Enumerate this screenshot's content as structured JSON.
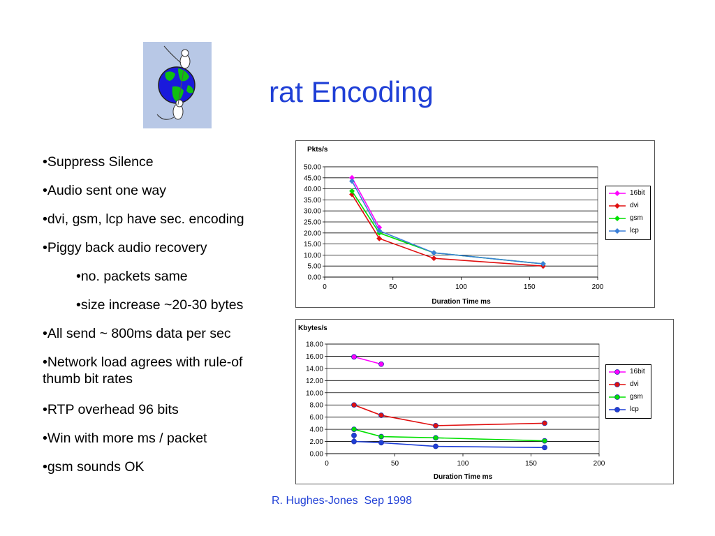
{
  "title": "rat Encoding",
  "logo": {
    "icon": "globe-with-mice-icon",
    "ocean": "#1a1adc",
    "land": "#10c010",
    "background": "#b8c8e6"
  },
  "bullets": [
    {
      "text": "•Suppress Silence",
      "indent": false
    },
    {
      "text": "•Audio sent one way",
      "indent": false
    },
    {
      "text": "•dvi, gsm, lcp have sec. encoding",
      "indent": false
    },
    {
      "text": "•Piggy back audio recovery",
      "indent": false
    },
    {
      "text": "•no. packets same",
      "indent": true
    },
    {
      "text": "•size increase ~20-30 bytes",
      "indent": true
    },
    {
      "text": "•All send ~ 800ms data per sec",
      "indent": false
    },
    {
      "text": "•Network load agrees with rule-of thumb bit rates",
      "indent": false
    },
    {
      "text": "•RTP overhead 96 bits",
      "indent": false
    },
    {
      "text": "•Win with more ms / packet",
      "indent": false
    },
    {
      "text": "•gsm sounds OK",
      "indent": false
    }
  ],
  "footer": "R. Hughes-Jones  Sep 1998",
  "chart_data": [
    {
      "type": "line",
      "title": "Pkts/s",
      "xlabel": "Duration Time ms",
      "ylabel": "",
      "xlim": [
        0,
        200
      ],
      "ylim": [
        0,
        50
      ],
      "xticks": [
        0,
        50,
        100,
        150,
        200
      ],
      "yticks": [
        0,
        5,
        10,
        15,
        20,
        25,
        30,
        35,
        40,
        45,
        50
      ],
      "ytick_decimals": 2,
      "grid": true,
      "legend": "right",
      "marker": "diamond",
      "series": [
        {
          "name": "16bit",
          "color": "#ff00ff",
          "x": [
            20,
            40
          ],
          "y": [
            45.0,
            22.5
          ]
        },
        {
          "name": "dvi",
          "color": "#e01010",
          "x": [
            20,
            40,
            80,
            160
          ],
          "y": [
            37.5,
            17.5,
            8.5,
            5.0
          ]
        },
        {
          "name": "gsm",
          "color": "#00e000",
          "x": [
            20,
            40,
            80,
            160
          ],
          "y": [
            39.0,
            20.0,
            11.0,
            6.0
          ]
        },
        {
          "name": "lcp",
          "color": "#3a7fd8",
          "x": [
            20,
            40,
            80,
            160
          ],
          "y": [
            43.5,
            21.0,
            11.0,
            6.0
          ]
        }
      ]
    },
    {
      "type": "line",
      "title": "Kbytes/s",
      "xlabel": "Duration Time ms",
      "ylabel": "",
      "xlim": [
        0,
        200
      ],
      "ylim": [
        0,
        18
      ],
      "xticks": [
        0,
        50,
        100,
        150,
        200
      ],
      "yticks": [
        0,
        2,
        4,
        6,
        8,
        10,
        12,
        14,
        16,
        18
      ],
      "ytick_decimals": 2,
      "grid": true,
      "legend": "right",
      "marker": "circle",
      "series": [
        {
          "name": "16bit",
          "color": "#ff00ff",
          "x": [
            20,
            40
          ],
          "y": [
            15.9,
            14.7
          ]
        },
        {
          "name": "dvi",
          "color": "#e01010",
          "x": [
            20,
            40,
            80,
            160
          ],
          "y": [
            8.0,
            6.3,
            4.6,
            5.0
          ]
        },
        {
          "name": "gsm",
          "color": "#00e000",
          "x": [
            20,
            40,
            80,
            160
          ],
          "y": [
            4.0,
            2.8,
            2.6,
            2.1
          ]
        },
        {
          "name": "lcp",
          "color": "#1f3fd6",
          "x": [
            20,
            20,
            40,
            80,
            160
          ],
          "y": [
            3.0,
            2.0,
            1.8,
            1.2,
            1.0
          ]
        }
      ]
    }
  ]
}
